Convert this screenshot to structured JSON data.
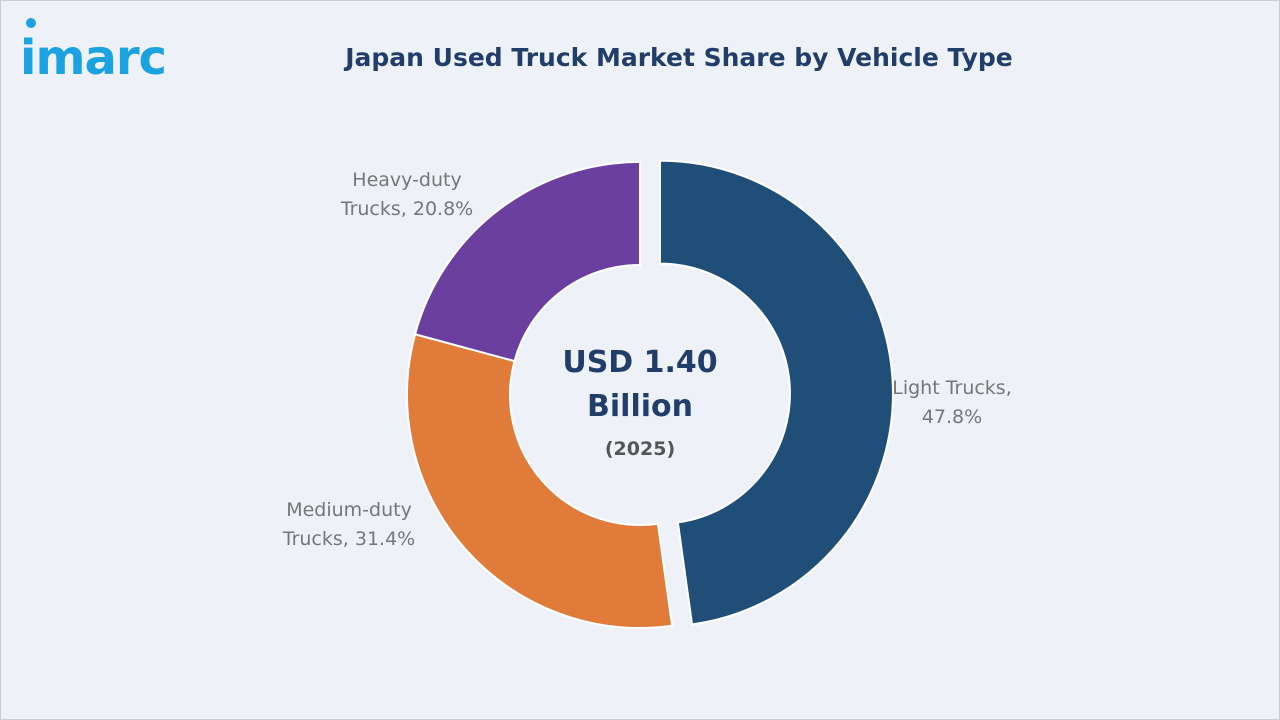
{
  "brand": {
    "logo_text": "imarc"
  },
  "chart_data": {
    "type": "pie",
    "title": "Japan Used Truck Market Share by Vehicle Type",
    "center_value_lines": [
      "USD 1.40",
      "Billion"
    ],
    "center_year": "(2025)",
    "unit": "%",
    "slices": [
      {
        "name": "Light Trucks",
        "value": 47.8,
        "label_lines": [
          "Light Trucks,",
          "47.8%"
        ],
        "color": "#1f4e79"
      },
      {
        "name": "Medium-duty Trucks",
        "value": 31.4,
        "label_lines": [
          "Medium-duty",
          "Trucks, 31.4%"
        ],
        "color": "#e07b39"
      },
      {
        "name": "Heavy-duty Trucks",
        "value": 20.8,
        "label_lines": [
          "Heavy-duty",
          "Trucks, 20.8%"
        ],
        "color": "#6a3fa0"
      }
    ]
  }
}
